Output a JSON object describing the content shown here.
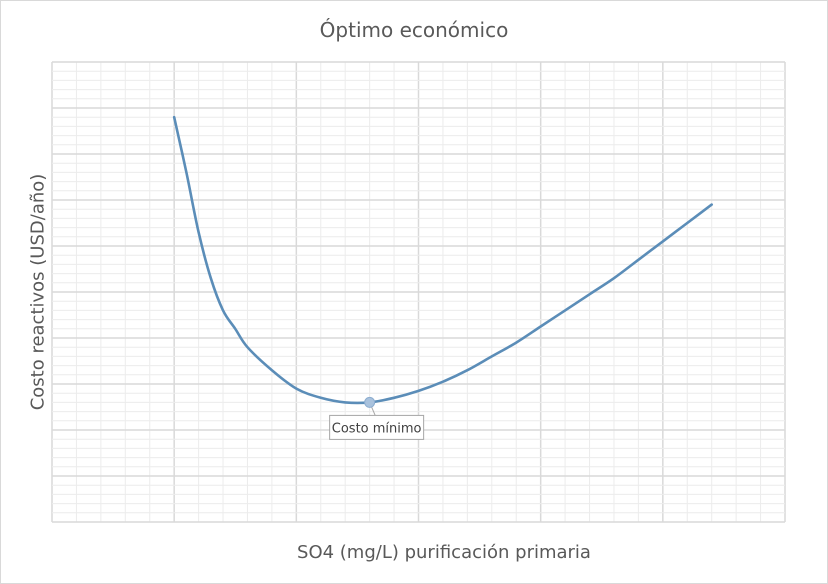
{
  "chart_data": {
    "type": "line",
    "title": "Óptimo económico",
    "xlabel": "SO4 (mg/L) purificación primaria",
    "ylabel": "Costo reactivos (USD/año)",
    "grid": true,
    "legend": "none",
    "xlim": [
      0,
      30
    ],
    "ylim": [
      0,
      10
    ],
    "series": [
      {
        "color": "#5b8db8",
        "points": [
          [
            5.0,
            8.8
          ],
          [
            5.5,
            7.6
          ],
          [
            6.0,
            6.3
          ],
          [
            6.5,
            5.3
          ],
          [
            7.0,
            4.6
          ],
          [
            7.5,
            4.2
          ],
          [
            8.0,
            3.8
          ],
          [
            9.0,
            3.3
          ],
          [
            10.0,
            2.9
          ],
          [
            11.0,
            2.7
          ],
          [
            12.0,
            2.6
          ],
          [
            13.0,
            2.6
          ],
          [
            14.0,
            2.7
          ],
          [
            15.0,
            2.85
          ],
          [
            16.0,
            3.05
          ],
          [
            17.0,
            3.3
          ],
          [
            18.0,
            3.6
          ],
          [
            19.0,
            3.9
          ],
          [
            20.0,
            4.25
          ],
          [
            21.0,
            4.6
          ],
          [
            22.0,
            4.95
          ],
          [
            23.0,
            5.3
          ],
          [
            24.0,
            5.7
          ],
          [
            25.0,
            6.1
          ],
          [
            26.0,
            6.5
          ],
          [
            27.0,
            6.9
          ]
        ]
      }
    ],
    "annotations": [
      {
        "text": "Costo mínimo",
        "x": 13.0,
        "y": 2.6
      }
    ]
  }
}
